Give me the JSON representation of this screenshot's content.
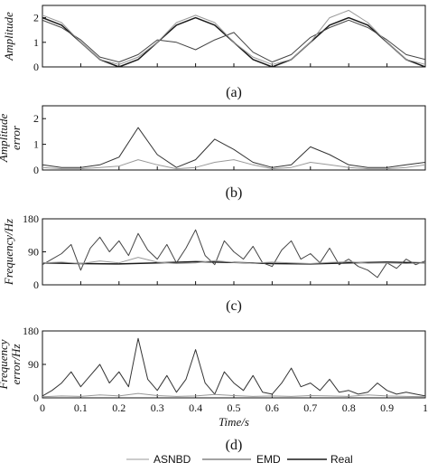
{
  "chart_data": [
    {
      "type": "line",
      "panel_label": "(a)",
      "ylabel": "Amplitude",
      "ylim": [
        0,
        2.5
      ],
      "yticks": [
        0,
        1,
        2
      ],
      "xlim": [
        0,
        1
      ],
      "series": [
        {
          "name": "Real",
          "color": "#1a1a1a",
          "x": [
            0,
            0.05,
            0.1,
            0.15,
            0.2,
            0.25,
            0.3,
            0.35,
            0.4,
            0.45,
            0.5,
            0.55,
            0.6,
            0.65,
            0.7,
            0.75,
            0.8,
            0.85,
            0.9,
            0.95,
            1.0
          ],
          "y": [
            2.0,
            1.7,
            1.0,
            0.3,
            0.0,
            0.3,
            1.0,
            1.7,
            2.0,
            1.7,
            1.0,
            0.3,
            0.0,
            0.3,
            1.0,
            1.7,
            2.0,
            1.7,
            1.0,
            0.3,
            0.0
          ]
        },
        {
          "name": "EMD",
          "color": "#444444",
          "x": [
            0,
            0.05,
            0.1,
            0.15,
            0.2,
            0.25,
            0.3,
            0.35,
            0.4,
            0.45,
            0.5,
            0.55,
            0.6,
            0.65,
            0.7,
            0.75,
            0.8,
            0.85,
            0.9,
            0.95,
            1.0
          ],
          "y": [
            1.9,
            1.6,
            1.1,
            0.4,
            0.2,
            0.5,
            1.1,
            1.0,
            0.7,
            1.1,
            1.4,
            0.6,
            0.2,
            0.5,
            1.2,
            1.6,
            1.9,
            1.6,
            1.1,
            0.5,
            0.3
          ]
        },
        {
          "name": "ASNBD",
          "color": "#999999",
          "x": [
            0,
            0.05,
            0.1,
            0.15,
            0.2,
            0.25,
            0.3,
            0.35,
            0.4,
            0.45,
            0.5,
            0.55,
            0.6,
            0.65,
            0.7,
            0.75,
            0.8,
            0.85,
            0.9,
            0.95,
            1.0
          ],
          "y": [
            2.1,
            1.8,
            1.0,
            0.3,
            0.1,
            0.4,
            1.0,
            1.8,
            2.1,
            1.8,
            1.0,
            0.4,
            0.1,
            0.3,
            1.0,
            2.0,
            2.3,
            1.8,
            1.0,
            0.3,
            0.1
          ]
        }
      ]
    },
    {
      "type": "line",
      "panel_label": "(b)",
      "ylabel_lines": [
        "Amplitude",
        "error"
      ],
      "ylim": [
        0,
        2.5
      ],
      "yticks": [
        0,
        1,
        2
      ],
      "xlim": [
        0,
        1
      ],
      "series": [
        {
          "name": "EMD",
          "color": "#333333",
          "x": [
            0,
            0.05,
            0.1,
            0.15,
            0.2,
            0.25,
            0.3,
            0.35,
            0.4,
            0.45,
            0.5,
            0.55,
            0.6,
            0.65,
            0.7,
            0.75,
            0.8,
            0.85,
            0.9,
            0.95,
            1.0
          ],
          "y": [
            0.2,
            0.1,
            0.1,
            0.2,
            0.5,
            1.65,
            0.6,
            0.1,
            0.4,
            1.2,
            0.8,
            0.3,
            0.1,
            0.2,
            0.9,
            0.6,
            0.2,
            0.1,
            0.1,
            0.2,
            0.3
          ]
        },
        {
          "name": "ASNBD",
          "color": "#999999",
          "x": [
            0,
            0.05,
            0.1,
            0.15,
            0.2,
            0.25,
            0.3,
            0.35,
            0.4,
            0.45,
            0.5,
            0.55,
            0.6,
            0.65,
            0.7,
            0.75,
            0.8,
            0.85,
            0.9,
            0.95,
            1.0
          ],
          "y": [
            0.1,
            0.05,
            0.05,
            0.1,
            0.15,
            0.4,
            0.2,
            0.05,
            0.1,
            0.3,
            0.4,
            0.2,
            0.05,
            0.1,
            0.3,
            0.2,
            0.1,
            0.05,
            0.05,
            0.1,
            0.2
          ]
        }
      ]
    },
    {
      "type": "line",
      "panel_label": "(c)",
      "ylabel": "Frequency/Hz",
      "ylim": [
        0,
        180
      ],
      "yticks": [
        0,
        90,
        180
      ],
      "xlim": [
        0,
        1
      ],
      "series": [
        {
          "name": "Real",
          "color": "#1a1a1a",
          "x": [
            0,
            0.1,
            0.2,
            0.3,
            0.4,
            0.5,
            0.6,
            0.7,
            0.8,
            0.9,
            1.0
          ],
          "y": [
            60,
            58,
            57,
            60,
            63,
            61,
            58,
            57,
            60,
            62,
            60
          ]
        },
        {
          "name": "EMD",
          "color": "#444444",
          "x": [
            0,
            0.025,
            0.05,
            0.075,
            0.1,
            0.125,
            0.15,
            0.175,
            0.2,
            0.225,
            0.25,
            0.275,
            0.3,
            0.325,
            0.35,
            0.375,
            0.4,
            0.425,
            0.45,
            0.475,
            0.5,
            0.525,
            0.55,
            0.575,
            0.6,
            0.625,
            0.65,
            0.675,
            0.7,
            0.725,
            0.75,
            0.775,
            0.8,
            0.825,
            0.85,
            0.875,
            0.9,
            0.925,
            0.95,
            0.975,
            1.0
          ],
          "y": [
            55,
            70,
            85,
            110,
            40,
            100,
            130,
            90,
            120,
            80,
            140,
            95,
            70,
            110,
            60,
            100,
            150,
            80,
            55,
            120,
            90,
            70,
            105,
            60,
            50,
            95,
            120,
            70,
            85,
            60,
            100,
            55,
            70,
            50,
            40,
            20,
            60,
            45,
            70,
            55,
            65
          ]
        },
        {
          "name": "ASNBD",
          "color": "#999999",
          "x": [
            0,
            0.05,
            0.1,
            0.15,
            0.2,
            0.25,
            0.3,
            0.35,
            0.4,
            0.45,
            0.5,
            0.55,
            0.6,
            0.65,
            0.7,
            0.75,
            0.8,
            0.85,
            0.9,
            0.95,
            1.0
          ],
          "y": [
            60,
            62,
            58,
            65,
            60,
            75,
            62,
            58,
            60,
            66,
            61,
            59,
            62,
            60,
            58,
            61,
            63,
            59,
            60,
            58,
            60
          ]
        }
      ]
    },
    {
      "type": "line",
      "panel_label": "(d)",
      "ylabel_lines": [
        "Frequency",
        "error/Hz"
      ],
      "ylim": [
        0,
        180
      ],
      "yticks": [
        0,
        90,
        180
      ],
      "xlim": [
        0,
        1
      ],
      "xlabel": "Time/s",
      "xticks": [
        0,
        0.1,
        0.2,
        0.3,
        0.4,
        0.5,
        0.6,
        0.7,
        0.8,
        0.9,
        1
      ],
      "series": [
        {
          "name": "EMD",
          "color": "#333333",
          "x": [
            0,
            0.025,
            0.05,
            0.075,
            0.1,
            0.125,
            0.15,
            0.175,
            0.2,
            0.225,
            0.25,
            0.275,
            0.3,
            0.325,
            0.35,
            0.375,
            0.4,
            0.425,
            0.45,
            0.475,
            0.5,
            0.525,
            0.55,
            0.575,
            0.6,
            0.625,
            0.65,
            0.675,
            0.7,
            0.725,
            0.75,
            0.775,
            0.8,
            0.825,
            0.85,
            0.875,
            0.9,
            0.925,
            0.95,
            0.975,
            1.0
          ],
          "y": [
            5,
            20,
            40,
            70,
            30,
            60,
            90,
            40,
            70,
            30,
            160,
            50,
            20,
            60,
            15,
            50,
            130,
            40,
            10,
            70,
            40,
            20,
            60,
            15,
            10,
            40,
            80,
            30,
            40,
            20,
            50,
            15,
            20,
            10,
            15,
            40,
            20,
            10,
            15,
            10,
            5
          ]
        },
        {
          "name": "ASNBD",
          "color": "#999999",
          "x": [
            0,
            0.05,
            0.1,
            0.15,
            0.2,
            0.25,
            0.3,
            0.35,
            0.4,
            0.45,
            0.5,
            0.55,
            0.6,
            0.65,
            0.7,
            0.75,
            0.8,
            0.85,
            0.9,
            0.95,
            1.0
          ],
          "y": [
            3,
            5,
            4,
            8,
            5,
            12,
            6,
            4,
            5,
            9,
            6,
            4,
            5,
            4,
            6,
            5,
            4,
            8,
            5,
            4,
            3
          ]
        }
      ]
    }
  ],
  "legend": {
    "items": [
      {
        "label": "ASNBD",
        "color": "#999999"
      },
      {
        "label": "EMD",
        "color": "#444444"
      },
      {
        "label": "Real",
        "color": "#1a1a1a"
      }
    ]
  }
}
